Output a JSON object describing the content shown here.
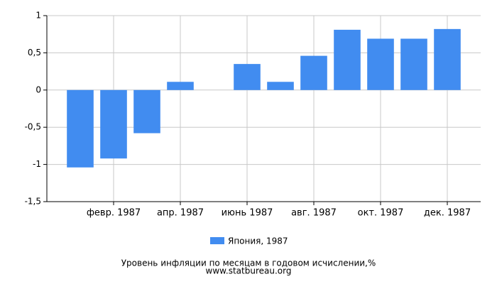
{
  "chart_data": {
    "type": "bar",
    "categories": [
      null,
      "февр. 1987",
      null,
      "апр. 1987",
      null,
      "июнь 1987",
      null,
      "авг. 1987",
      null,
      "окт. 1987",
      null,
      "дек. 1987"
    ],
    "series": [
      {
        "name": "Япония, 1987",
        "color": "#418cf0",
        "values": [
          -1.04,
          -0.92,
          -0.58,
          0.11,
          0,
          0.35,
          0.11,
          0.46,
          0.81,
          0.69,
          0.69,
          0.82
        ]
      }
    ],
    "ylim": [
      -1.5,
      1
    ],
    "yticks": [
      {
        "value": -1.5,
        "label": "-1,5"
      },
      -1,
      {
        "value": -0.5,
        "label": "-0,5"
      },
      0,
      {
        "value": 0.5,
        "label": "0,5"
      },
      1
    ],
    "grid": true,
    "title": "Уровень инфляции по месяцам в годовом исчислении,%",
    "source": "www.statbureau.org"
  }
}
